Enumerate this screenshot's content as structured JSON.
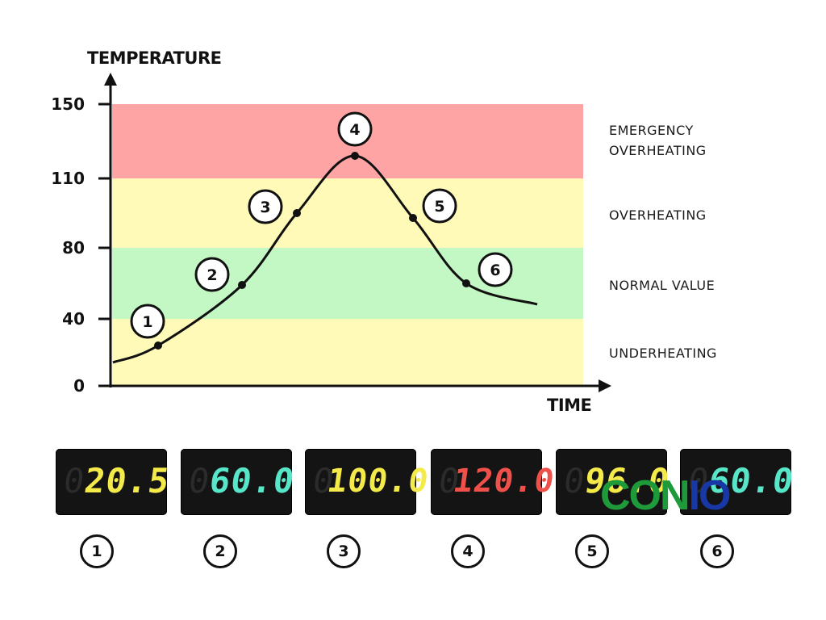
{
  "chart_data": {
    "type": "line",
    "y_axis_label": "TEMPERATURE",
    "x_axis_label": "TIME",
    "y_ticks": [
      0,
      40,
      80,
      110,
      150
    ],
    "ylim": [
      0,
      150
    ],
    "grid": false,
    "zones": [
      {
        "label": "UNDERHEATING",
        "from": 0,
        "to": 40,
        "color": "#fffab8"
      },
      {
        "label": "NORMAL VALUE",
        "from": 40,
        "to": 80,
        "color": "#c3f7c3"
      },
      {
        "label": "OVERHEATING",
        "from": 80,
        "to": 110,
        "color": "#fffab8"
      },
      {
        "label": "EMERGENCY OVERHEATING",
        "from": 110,
        "to": 150,
        "color": "#ffa4a4"
      }
    ],
    "markers": [
      {
        "id": "1",
        "value": 20.5
      },
      {
        "id": "2",
        "value": 60.0
      },
      {
        "id": "3",
        "value": 100.0
      },
      {
        "id": "4",
        "value": 120.0
      },
      {
        "id": "5",
        "value": 96.0
      },
      {
        "id": "6",
        "value": 60.0
      }
    ]
  },
  "displays": [
    {
      "id": "1",
      "ghost": "0",
      "value": "20.5",
      "color": "#f4ea4a"
    },
    {
      "id": "2",
      "ghost": "0",
      "value": "60.0",
      "color": "#58e6c8"
    },
    {
      "id": "3",
      "ghost": "0",
      "value": "100.0",
      "color": "#f4ea4a"
    },
    {
      "id": "4",
      "ghost": "0",
      "value": "120.0",
      "color": "#f0504a"
    },
    {
      "id": "5",
      "ghost": "0",
      "value": "96.0",
      "color": "#f4ea4a"
    },
    {
      "id": "6",
      "ghost": "0",
      "value": "60.0",
      "color": "#58e6c8"
    }
  ],
  "watermark": {
    "part1": "CON",
    "part2": "IO"
  }
}
